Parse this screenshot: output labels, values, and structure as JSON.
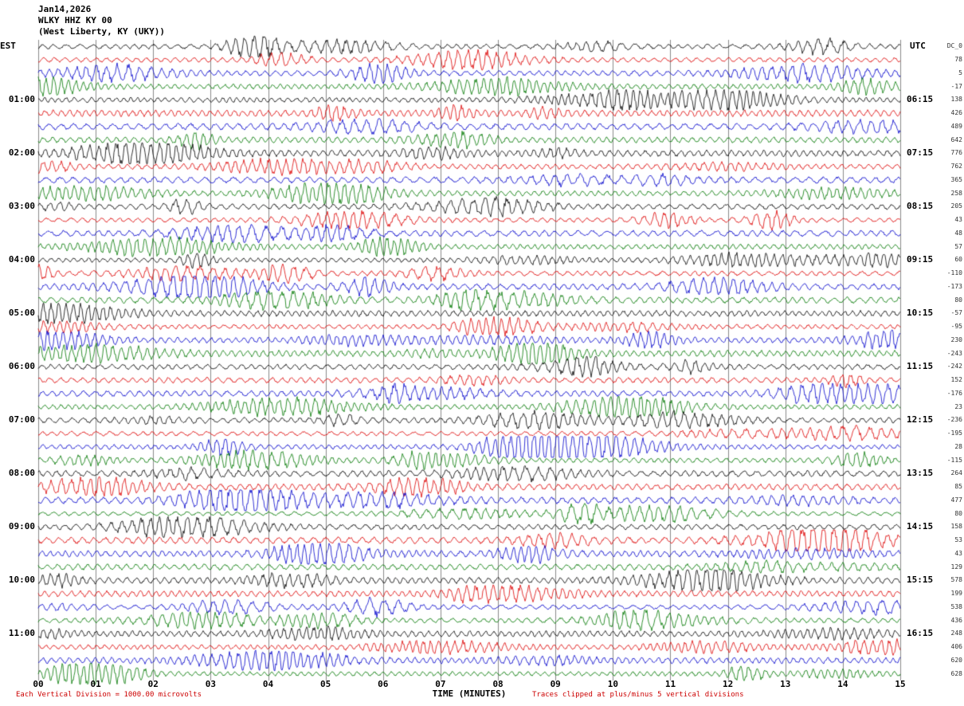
{
  "header": {
    "date": "Jan14,2026",
    "station": "WLKY HHZ KY 00",
    "location": "(West Liberty, KY (UKY))"
  },
  "plot": {
    "left_axis_label": "EST",
    "right_axis_label": "UTC",
    "left_times": [
      "01:00",
      "02:00",
      "03:00",
      "04:00",
      "05:00",
      "06:00",
      "07:00",
      "08:00",
      "09:00",
      "10:00",
      "11:00"
    ],
    "right_times": [
      "06:15",
      "07:15",
      "08:15",
      "09:15",
      "10:15",
      "11:15",
      "12:15",
      "13:15",
      "14:15",
      "15:15",
      "16:15"
    ],
    "x_ticks": [
      "00",
      "01",
      "02",
      "03",
      "04",
      "05",
      "06",
      "07",
      "08",
      "09",
      "10",
      "11",
      "12",
      "13",
      "14",
      "15"
    ],
    "xlabel": "TIME (MINUTES)",
    "dc_values": [
      "DC_0",
      "78",
      "5",
      "-17",
      "138",
      "426",
      "489",
      "642",
      "776",
      "762",
      "365",
      "258",
      "205",
      "43",
      "48",
      "57",
      "60",
      "-110",
      "-173",
      "80",
      "-57",
      "-95",
      "230",
      "-243",
      "-242",
      "152",
      "-176",
      "23",
      "-236",
      "-195",
      "28",
      "-115",
      "264",
      "85",
      "477",
      "80",
      "158",
      "53",
      "43",
      "129",
      "578",
      "199",
      "538",
      "436",
      "248",
      "406",
      "620",
      "628"
    ]
  },
  "footer": {
    "left": "Each Vertical Division = 1000.00 microvolts",
    "right": "Traces clipped at plus/minus 5 vertical divisions"
  },
  "chart_data": {
    "type": "line",
    "subtype": "seismogram-helicorder",
    "title": "WLKY HHZ KY 00 (West Liberty, KY (UKY)) Jan14,2026",
    "xlabel": "TIME (MINUTES)",
    "x_range": [
      0,
      15
    ],
    "rows": 48,
    "minutes_per_row": 15,
    "traces_per_hour": 4,
    "trace_colors": [
      "#000000",
      "#dd0000",
      "#0000cc",
      "#007700"
    ],
    "left_hour_labels_est": [
      "01:00",
      "02:00",
      "03:00",
      "04:00",
      "05:00",
      "06:00",
      "07:00",
      "08:00",
      "09:00",
      "10:00",
      "11:00"
    ],
    "right_hour_labels_utc": [
      "06:15",
      "07:15",
      "08:15",
      "09:15",
      "10:15",
      "11:15",
      "12:15",
      "13:15",
      "14:15",
      "15:15",
      "16:15"
    ],
    "vertical_division_microvolts": 1000.0,
    "clipping": "plus/minus 5 vertical divisions",
    "grid": "vertical line each minute (0-15)",
    "waveform": "continuous seismic background noise, amplitude about one vertical division with intermittent larger bursts; individual sample values not resolvable at screenshot scale"
  }
}
